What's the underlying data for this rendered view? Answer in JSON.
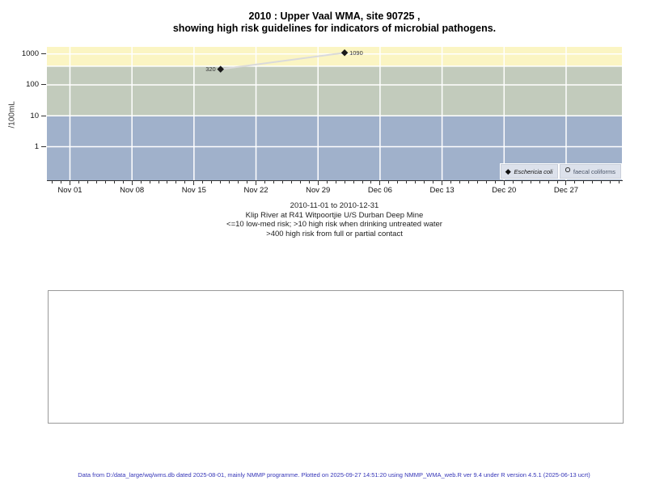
{
  "title": {
    "line1": "2010 : Upper Vaal WMA, site 90725 ,",
    "line2": "showing high risk guidelines for indicators of microbial pathogens."
  },
  "chart_data": {
    "type": "scatter",
    "title": "2010 : Upper Vaal WMA, site 90725 , showing high risk guidelines for indicators of microbial pathogens.",
    "xlabel": "",
    "ylabel": "/100mL",
    "x_axis": {
      "kind": "date",
      "range_label": "2010-11-01 to 2010-12-31",
      "domain_days": [
        -2.6,
        62.3
      ],
      "major_ticks": [
        {
          "day": 0,
          "label": "Nov 01"
        },
        {
          "day": 7,
          "label": "Nov 08"
        },
        {
          "day": 14,
          "label": "Nov 15"
        },
        {
          "day": 21,
          "label": "Nov 22"
        },
        {
          "day": 28,
          "label": "Nov 29"
        },
        {
          "day": 35,
          "label": "Dec 06"
        },
        {
          "day": 42,
          "label": "Dec 13"
        },
        {
          "day": 49,
          "label": "Dec 20"
        },
        {
          "day": 56,
          "label": "Dec 27"
        }
      ],
      "minor_tick_every_days": 1
    },
    "y_axis": {
      "scale": "log",
      "ticks": [
        1,
        10,
        100,
        1000
      ],
      "domain": [
        0.082,
        1690
      ],
      "grid": true
    },
    "bands": [
      {
        "name": "high risk from full or partial contact (>400)",
        "from": 400,
        "to": 1690,
        "color": "#fbf5c3"
      },
      {
        "name": "high risk when drinking untreated water (>10)",
        "from": 10,
        "to": 400,
        "color": "#c2cbbc"
      },
      {
        "name": "low-med risk (<=10)",
        "from": 0.082,
        "to": 10,
        "color": "#a0b1cb"
      }
    ],
    "series": [
      {
        "name": "Eschericia coli",
        "marker": "filled-diamond",
        "color": "#1a1a1a",
        "line_color": "#dadada",
        "points": [
          {
            "date_est": "2010-11-18",
            "day": 17,
            "value": 320,
            "label": "320",
            "label_side": "left"
          },
          {
            "date_est": "2010-12-02",
            "day": 31,
            "value": 1090,
            "label": "1090",
            "label_side": "right"
          }
        ]
      },
      {
        "name": "faecal coliforms",
        "marker": "open-circle",
        "color": "#444444",
        "points": []
      }
    ],
    "legend": {
      "position": "bottom-right-inside",
      "items": [
        {
          "label": "Eschericia coli",
          "symbol": "filled-diamond",
          "italic": true
        },
        {
          "label": "faecal coliforms",
          "symbol": "open-circle",
          "italic": false
        }
      ]
    },
    "grid_color": "#ffffff"
  },
  "caption": {
    "line1": "2010-11-01 to 2010-12-31",
    "line2": "Klip River at R41 Witpoortjie U/S Durban Deep Mine",
    "line3": "<=10 low-med risk; >10 high risk when drinking untreated water",
    "line4": ">400 high risk from full or partial contact"
  },
  "footer": "Data from D:/data_large/wq/wms.db dated 2025-08-01, mainly NMMP programme. Plotted on 2025-09-27 14:51:20 using NMMP_WMA_web.R ver 9.4 under R version 4.5.1 (2025-06-13 ucrt)"
}
